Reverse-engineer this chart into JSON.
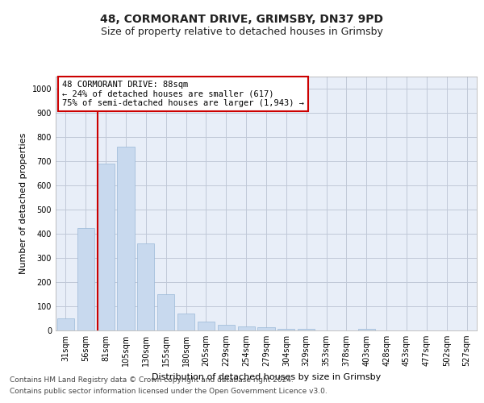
{
  "title": "48, CORMORANT DRIVE, GRIMSBY, DN37 9PD",
  "subtitle": "Size of property relative to detached houses in Grimsby",
  "xlabel": "Distribution of detached houses by size in Grimsby",
  "ylabel": "Number of detached properties",
  "categories": [
    "31sqm",
    "56sqm",
    "81sqm",
    "105sqm",
    "130sqm",
    "155sqm",
    "180sqm",
    "205sqm",
    "229sqm",
    "254sqm",
    "279sqm",
    "304sqm",
    "329sqm",
    "353sqm",
    "378sqm",
    "403sqm",
    "428sqm",
    "453sqm",
    "477sqm",
    "502sqm",
    "527sqm"
  ],
  "values": [
    50,
    425,
    690,
    760,
    360,
    150,
    70,
    38,
    25,
    18,
    12,
    8,
    8,
    0,
    0,
    8,
    0,
    0,
    0,
    0,
    0
  ],
  "bar_color": "#c8d9ee",
  "bar_edge_color": "#9ab8d8",
  "vline_color": "#cc0000",
  "vline_x_index": 2,
  "annotation_text": "48 CORMORANT DRIVE: 88sqm\n← 24% of detached houses are smaller (617)\n75% of semi-detached houses are larger (1,943) →",
  "annotation_box_color": "#ffffff",
  "annotation_box_edge_color": "#cc0000",
  "ylim": [
    0,
    1050
  ],
  "yticks": [
    0,
    100,
    200,
    300,
    400,
    500,
    600,
    700,
    800,
    900,
    1000
  ],
  "grid_color": "#c0c8d8",
  "bg_color": "#e8eef8",
  "footer_line1": "Contains HM Land Registry data © Crown copyright and database right 2024.",
  "footer_line2": "Contains public sector information licensed under the Open Government Licence v3.0.",
  "title_fontsize": 10,
  "subtitle_fontsize": 9,
  "xlabel_fontsize": 8,
  "ylabel_fontsize": 8,
  "tick_fontsize": 7,
  "annotation_fontsize": 7.5,
  "footer_fontsize": 6.5
}
